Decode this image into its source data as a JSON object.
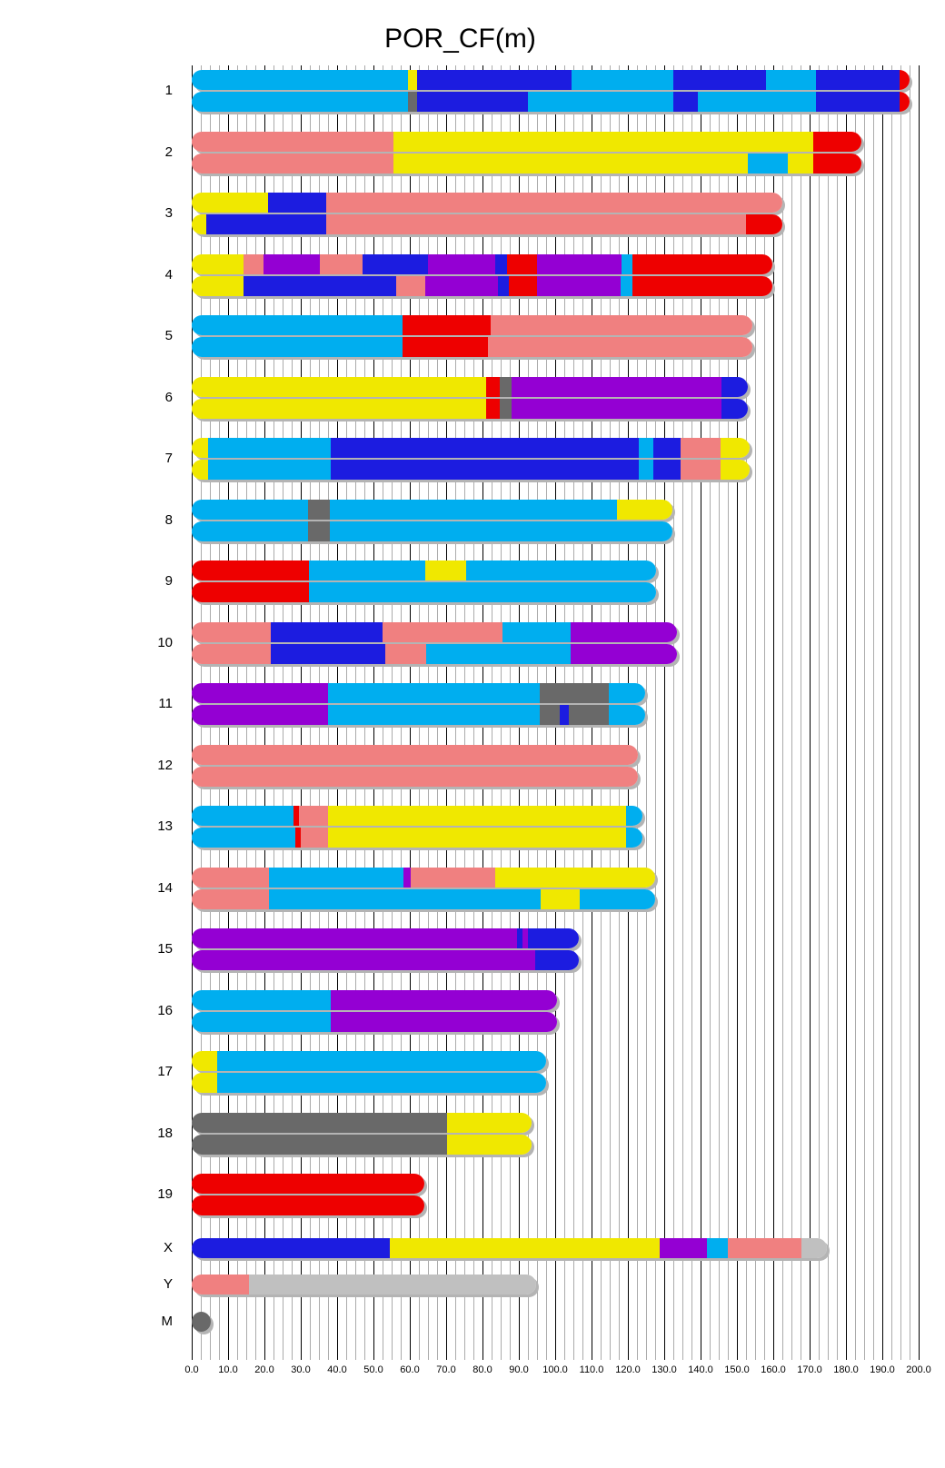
{
  "chart_data": {
    "type": "chromosome-ideogram",
    "title": "POR_CF(m)",
    "x_axis": {
      "min": 0,
      "max": 200,
      "major_step": 10,
      "minor_step": 2.5,
      "tick_labels": [
        "0.0",
        "10.0",
        "20.0",
        "30.0",
        "40.0",
        "50.0",
        "60.0",
        "70.0",
        "80.0",
        "90.0",
        "100.0",
        "110.0",
        "120.0",
        "130.0",
        "140.0",
        "150.0",
        "160.0",
        "170.0",
        "180.0",
        "190.0",
        "200.0"
      ],
      "grid": "on"
    },
    "colors": {
      "sky": "#00AEEF",
      "dblue": "#1C1CE0",
      "yellow": "#F0E800",
      "pink": "#F08080",
      "red": "#EE0000",
      "purple": "#9400D3",
      "gray": "#696969",
      "lgray": "#C0C0C0"
    },
    "chromosomes": [
      {
        "name": "1",
        "bars": [
          [
            [
              "sky",
              0,
              59.5
            ],
            [
              "yellow",
              59.5,
              62
            ],
            [
              "dblue",
              62,
              104.4
            ],
            [
              "sky",
              104.4,
              132.6
            ],
            [
              "dblue",
              132.6,
              158
            ],
            [
              "sky",
              158,
              171.8
            ],
            [
              "dblue",
              171.8,
              194.7
            ],
            [
              "red",
              194.7,
              197.5
            ]
          ],
          [
            [
              "sky",
              0,
              59.5
            ],
            [
              "gray",
              59.5,
              62
            ],
            [
              "dblue",
              62,
              92.5
            ],
            [
              "sky",
              92.5,
              132.6
            ],
            [
              "dblue",
              132.6,
              139.3
            ],
            [
              "sky",
              139.3,
              171.8
            ],
            [
              "dblue",
              171.8,
              194.7
            ],
            [
              "red",
              194.7,
              197.5
            ]
          ]
        ]
      },
      {
        "name": "2",
        "bars": [
          [
            [
              "pink",
              0,
              55.6
            ],
            [
              "yellow",
              55.6,
              171
            ],
            [
              "red",
              171,
              184.3
            ]
          ],
          [
            [
              "pink",
              0,
              55.6
            ],
            [
              "yellow",
              55.6,
              153
            ],
            [
              "sky",
              153,
              164
            ],
            [
              "yellow",
              164,
              171
            ],
            [
              "red",
              171,
              184.3
            ]
          ]
        ]
      },
      {
        "name": "3",
        "bars": [
          [
            [
              "yellow",
              0,
              21
            ],
            [
              "dblue",
              21,
              37
            ],
            [
              "pink",
              37,
              162.5
            ]
          ],
          [
            [
              "yellow",
              0,
              4
            ],
            [
              "dblue",
              4,
              37
            ],
            [
              "pink",
              37,
              152.4
            ],
            [
              "red",
              152.4,
              162.5
            ]
          ]
        ]
      },
      {
        "name": "4",
        "bars": [
          [
            [
              "yellow",
              0,
              14.2
            ],
            [
              "pink",
              14.2,
              19.7
            ],
            [
              "purple",
              19.7,
              35.3
            ],
            [
              "pink",
              35.3,
              47.1
            ],
            [
              "dblue",
              47.1,
              65
            ],
            [
              "purple",
              65,
              83.6
            ],
            [
              "dblue",
              83.6,
              86.7
            ],
            [
              "red",
              86.7,
              94.9
            ],
            [
              "purple",
              94.9,
              118.3
            ],
            [
              "sky",
              118.3,
              121.3
            ],
            [
              "red",
              121.3,
              159.7
            ]
          ],
          [
            [
              "yellow",
              0,
              14.2
            ],
            [
              "dblue",
              14.2,
              56.2
            ],
            [
              "pink",
              56.2,
              64.2
            ],
            [
              "purple",
              64.2,
              84.2
            ],
            [
              "dblue",
              84.2,
              87.3
            ],
            [
              "red",
              87.3,
              94.9
            ],
            [
              "purple",
              94.9,
              118
            ],
            [
              "sky",
              118,
              121.3
            ],
            [
              "red",
              121.3,
              159.7
            ]
          ]
        ]
      },
      {
        "name": "5",
        "bars": [
          [
            [
              "sky",
              0,
              58
            ],
            [
              "red",
              58,
              82.2
            ],
            [
              "pink",
              82.2,
              154.2
            ]
          ],
          [
            [
              "sky",
              0,
              58
            ],
            [
              "red",
              58,
              81.5
            ],
            [
              "pink",
              81.5,
              154.2
            ]
          ]
        ]
      },
      {
        "name": "6",
        "bars": [
          [
            [
              "yellow",
              0,
              81
            ],
            [
              "red",
              81,
              84.8
            ],
            [
              "gray",
              84.8,
              87.9
            ],
            [
              "purple",
              87.9,
              145.7
            ],
            [
              "dblue",
              145.7,
              153
            ]
          ],
          [
            [
              "yellow",
              0,
              81
            ],
            [
              "red",
              81,
              84.8
            ],
            [
              "gray",
              84.8,
              87.9
            ],
            [
              "purple",
              87.9,
              145.7
            ],
            [
              "dblue",
              145.7,
              153
            ]
          ]
        ]
      },
      {
        "name": "7",
        "bars": [
          [
            [
              "yellow",
              0,
              4.5
            ],
            [
              "sky",
              4.5,
              38.3
            ],
            [
              "dblue",
              38.3,
              123
            ],
            [
              "sky",
              123,
              127
            ],
            [
              "dblue",
              127,
              134.6
            ],
            [
              "pink",
              134.6,
              145.6
            ],
            [
              "yellow",
              145.6,
              153.5
            ]
          ],
          [
            [
              "yellow",
              0,
              4.5
            ],
            [
              "sky",
              4.5,
              38.3
            ],
            [
              "dblue",
              38.3,
              123
            ],
            [
              "sky",
              123,
              127
            ],
            [
              "dblue",
              127,
              134.6
            ],
            [
              "pink",
              134.6,
              145.6
            ],
            [
              "yellow",
              145.6,
              153.5
            ]
          ]
        ]
      },
      {
        "name": "8",
        "bars": [
          [
            [
              "sky",
              0,
              32.1
            ],
            [
              "gray",
              32.1,
              38
            ],
            [
              "sky",
              38,
              117.1
            ],
            [
              "yellow",
              117.1,
              132.3
            ]
          ],
          [
            [
              "sky",
              0,
              32.1
            ],
            [
              "gray",
              32.1,
              38
            ],
            [
              "sky",
              38,
              132.3
            ]
          ]
        ]
      },
      {
        "name": "9",
        "bars": [
          [
            [
              "red",
              0,
              32.2
            ],
            [
              "sky",
              32.2,
              64.2
            ],
            [
              "yellow",
              64.2,
              75.5
            ],
            [
              "sky",
              75.5,
              127.8
            ]
          ],
          [
            [
              "red",
              0,
              32.2
            ],
            [
              "sky",
              32.2,
              127.8
            ]
          ]
        ]
      },
      {
        "name": "10",
        "bars": [
          [
            [
              "pink",
              0,
              21.8
            ],
            [
              "dblue",
              21.8,
              52.6
            ],
            [
              "pink",
              52.6,
              85.5
            ],
            [
              "sky",
              85.5,
              104.3
            ],
            [
              "purple",
              104.3,
              133.5
            ]
          ],
          [
            [
              "pink",
              0,
              21.8
            ],
            [
              "dblue",
              21.8,
              53.2
            ],
            [
              "pink",
              53.2,
              64.4
            ],
            [
              "sky",
              64.4,
              104.3
            ],
            [
              "purple",
              104.3,
              133.5
            ]
          ]
        ]
      },
      {
        "name": "11",
        "bars": [
          [
            [
              "purple",
              0,
              37.6
            ],
            [
              "sky",
              37.6,
              95.8
            ],
            [
              "gray",
              95.8,
              114.7
            ],
            [
              "sky",
              114.7,
              124.8
            ]
          ],
          [
            [
              "purple",
              0,
              37.6
            ],
            [
              "sky",
              37.6,
              95.8
            ],
            [
              "gray",
              95.8,
              101.3
            ],
            [
              "dblue",
              101.3,
              103.7
            ],
            [
              "gray",
              103.7,
              114.7
            ],
            [
              "sky",
              114.7,
              124.8
            ]
          ]
        ]
      },
      {
        "name": "12",
        "bars": [
          [
            [
              "pink",
              0,
              122.8
            ]
          ],
          [
            [
              "pink",
              0,
              122.8
            ]
          ]
        ]
      },
      {
        "name": "13",
        "bars": [
          [
            [
              "sky",
              0,
              28
            ],
            [
              "red",
              28,
              29.5
            ],
            [
              "pink",
              29.5,
              37.6
            ],
            [
              "yellow",
              37.6,
              119.5
            ],
            [
              "sky",
              119.5,
              123.9
            ]
          ],
          [
            [
              "sky",
              0,
              28.5
            ],
            [
              "red",
              28.5,
              30
            ],
            [
              "pink",
              30,
              37.6
            ],
            [
              "yellow",
              37.6,
              119.5
            ],
            [
              "sky",
              119.5,
              123.9
            ]
          ]
        ]
      },
      {
        "name": "14",
        "bars": [
          [
            [
              "pink",
              0,
              21.3
            ],
            [
              "sky",
              21.3,
              58.3
            ],
            [
              "purple",
              58.3,
              60.3
            ],
            [
              "pink",
              60.3,
              83.6
            ],
            [
              "yellow",
              83.6,
              127.5
            ]
          ],
          [
            [
              "pink",
              0,
              21.3
            ],
            [
              "sky",
              21.3,
              96
            ],
            [
              "yellow",
              96,
              106.8
            ],
            [
              "sky",
              106.8,
              127.5
            ]
          ]
        ]
      },
      {
        "name": "15",
        "bars": [
          [
            [
              "purple",
              0,
              89.5
            ],
            [
              "dblue",
              89.5,
              91
            ],
            [
              "purple",
              91,
              92.5
            ],
            [
              "dblue",
              92.5,
              106.6
            ]
          ],
          [
            [
              "purple",
              0,
              94.6
            ],
            [
              "dblue",
              94.6,
              106.6
            ]
          ]
        ]
      },
      {
        "name": "16",
        "bars": [
          [
            [
              "sky",
              0,
              38.3
            ],
            [
              "purple",
              38.3,
              100.5
            ]
          ],
          [
            [
              "sky",
              0,
              38.3
            ],
            [
              "purple",
              38.3,
              100.5
            ]
          ]
        ]
      },
      {
        "name": "17",
        "bars": [
          [
            [
              "yellow",
              0,
              7
            ],
            [
              "sky",
              7,
              97.6
            ]
          ],
          [
            [
              "yellow",
              0,
              7
            ],
            [
              "sky",
              7,
              97.6
            ]
          ]
        ]
      },
      {
        "name": "18",
        "bars": [
          [
            [
              "gray",
              0,
              70.3
            ],
            [
              "yellow",
              70.3,
              93.4
            ]
          ],
          [
            [
              "gray",
              0,
              70.3
            ],
            [
              "yellow",
              70.3,
              93.4
            ]
          ]
        ]
      },
      {
        "name": "19",
        "bars": [
          [
            [
              "red",
              0,
              64
            ]
          ],
          [
            [
              "red",
              0,
              64
            ]
          ]
        ]
      },
      {
        "name": "X",
        "bars": [
          [
            [
              "dblue",
              0,
              54.4
            ],
            [
              "yellow",
              54.4,
              128.7
            ],
            [
              "purple",
              128.7,
              141.8
            ],
            [
              "sky",
              141.8,
              147.5
            ],
            [
              "pink",
              147.5,
              167.7
            ],
            [
              "lgray",
              167.7,
              174.8
            ]
          ]
        ]
      },
      {
        "name": "Y",
        "bars": [
          [
            [
              "pink",
              0,
              15.7
            ],
            [
              "lgray",
              15.7,
              94.8
            ]
          ]
        ]
      },
      {
        "name": "M",
        "shape": "circle",
        "bars": [
          [
            [
              "gray",
              0,
              5.2
            ]
          ]
        ]
      }
    ]
  }
}
